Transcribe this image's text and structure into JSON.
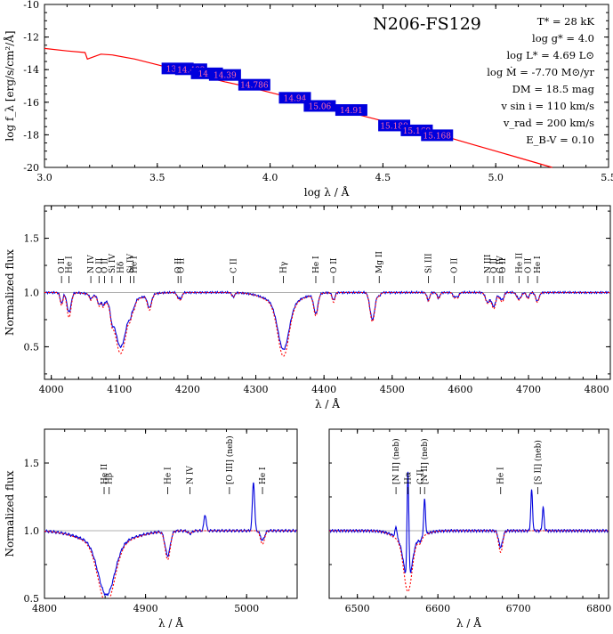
{
  "chart_data": [
    {
      "type": "scatter",
      "title": "N206-FS129",
      "xlabel": "log λ / Å",
      "ylabel": "log f_λ [erg/s/cm²/Å]",
      "xlim": [
        3.0,
        5.5
      ],
      "ylim": [
        -20,
        -10
      ],
      "xticks": [
        "3.0",
        "3.5",
        "4.0",
        "4.5",
        "5.0",
        "5.5"
      ],
      "yticks": [
        "-20",
        "-18",
        "-16",
        "-14",
        "-12",
        "-10"
      ],
      "model_sed": {
        "name": "model SED",
        "color": "#ff0000",
        "x": [
          3.0,
          3.1,
          3.18,
          3.19,
          3.25,
          3.3,
          3.4,
          3.5,
          3.6,
          3.7,
          3.8,
          3.9,
          4.0,
          4.1,
          4.2,
          4.3,
          4.4,
          4.5,
          4.6,
          4.7,
          4.8,
          4.9,
          5.0,
          5.1,
          5.25
        ],
        "y": [
          -12.7,
          -12.85,
          -12.95,
          -13.35,
          -13.05,
          -13.1,
          -13.35,
          -13.7,
          -14.05,
          -14.4,
          -14.75,
          -15.05,
          -15.4,
          -15.75,
          -16.1,
          -16.45,
          -16.8,
          -17.15,
          -17.5,
          -17.85,
          -18.2,
          -18.6,
          -19.0,
          -19.4,
          -20.0
        ]
      },
      "photometry": {
        "name": "photometry",
        "color": "#0000dd",
        "points": [
          {
            "label": "13.88",
            "x": 3.59,
            "y": -13.9
          },
          {
            "label": "14.482",
            "x": 3.65,
            "y": -13.95
          },
          {
            "label": "14.5",
            "x": 3.72,
            "y": -14.2
          },
          {
            "label": "14.39",
            "x": 3.8,
            "y": -14.3
          },
          {
            "label": "14.786",
            "x": 3.93,
            "y": -14.9
          },
          {
            "label": "14.94",
            "x": 4.11,
            "y": -15.7
          },
          {
            "label": "15.06",
            "x": 4.22,
            "y": -16.2
          },
          {
            "label": "14.91",
            "x": 4.36,
            "y": -16.45
          },
          {
            "label": "15.189",
            "x": 4.55,
            "y": -17.4
          },
          {
            "label": "15.169",
            "x": 4.65,
            "y": -17.7
          },
          {
            "label": "15.168",
            "x": 4.74,
            "y": -18.0
          }
        ]
      },
      "parameters": [
        "T* = 28 kK",
        "log g* = 4.0",
        "log L* = 4.69 L⊙",
        "log Ṁ = -7.70 M⊙/yr",
        "DM = 18.5 mag",
        "v sin i = 110 km/s",
        "v_rad = 200 km/s",
        "E_B-V = 0.10"
      ]
    },
    {
      "type": "line",
      "xlabel": "λ / Å",
      "ylabel": "Normalized flux",
      "xlim": [
        3990,
        4820
      ],
      "ylim": [
        0.2,
        1.8
      ],
      "xticks": [
        "4000",
        "4100",
        "4200",
        "4300",
        "4400",
        "4500",
        "4600",
        "4700",
        "4800"
      ],
      "yticks": [
        "0.5",
        "1.0",
        "1.5"
      ],
      "series": [
        {
          "name": "observation",
          "color": "#0000dd",
          "style": "solid"
        },
        {
          "name": "model",
          "color": "#ff0000",
          "style": "dotted"
        }
      ],
      "lines": [
        {
          "label": "O II",
          "x": 4015,
          "depth_obs": 0.1,
          "depth_mod": 0.12,
          "width": 2
        },
        {
          "label": "He I",
          "x": 4026,
          "depth_obs": 0.18,
          "depth_mod": 0.23,
          "width": 3
        },
        {
          "label": "N IV",
          "x": 4058,
          "depth_obs": 0.04,
          "depth_mod": 0.05,
          "width": 2
        },
        {
          "label": "O II",
          "x": 4070,
          "depth_obs": 0.07,
          "depth_mod": 0.08,
          "width": 2
        },
        {
          "label": "O II",
          "x": 4076,
          "depth_obs": 0.06,
          "depth_mod": 0.07,
          "width": 2
        },
        {
          "label": "Si IV",
          "x": 4089,
          "depth_obs": 0.1,
          "depth_mod": 0.1,
          "width": 2
        },
        {
          "label": "Hδ",
          "x": 4101.7,
          "depth_obs": 0.4,
          "depth_mod": 0.45,
          "width": 8
        },
        {
          "label": "Si IV",
          "x": 4116,
          "depth_obs": 0.08,
          "depth_mod": 0.08,
          "width": 2
        },
        {
          "label": "He I",
          "x": 4121,
          "depth_obs": 0.05,
          "depth_mod": 0.06,
          "width": 2
        },
        {
          "label": "He I",
          "x": 4144,
          "depth_obs": 0.12,
          "depth_mod": 0.14,
          "width": 3
        },
        {
          "label": "O II",
          "x": 4186,
          "depth_obs": 0.04,
          "depth_mod": 0.05,
          "width": 2
        },
        {
          "label": "O II",
          "x": 4190,
          "depth_obs": 0.05,
          "depth_mod": 0.06,
          "width": 2
        },
        {
          "label": "C II",
          "x": 4267,
          "depth_obs": 0.04,
          "depth_mod": 0.04,
          "width": 2
        },
        {
          "label": "Hγ",
          "x": 4340.5,
          "depth_obs": 0.42,
          "depth_mod": 0.47,
          "width": 8
        },
        {
          "label": "He I",
          "x": 4388,
          "depth_obs": 0.18,
          "depth_mod": 0.2,
          "width": 3
        },
        {
          "label": "O II",
          "x": 4414,
          "depth_obs": 0.07,
          "depth_mod": 0.09,
          "width": 2
        },
        {
          "label": "He I",
          "x": 4471,
          "depth_obs": 0.25,
          "depth_mod": 0.27,
          "width": 3.5
        },
        {
          "label": "Mg II",
          "x": 4481,
          "depth_obs": 0.03,
          "depth_mod": 0.03,
          "width": 2
        },
        {
          "label": "Si III",
          "x": 4553,
          "depth_obs": 0.07,
          "depth_mod": 0.08,
          "width": 2
        },
        {
          "label": "Si III",
          "x": 4568,
          "depth_obs": 0.05,
          "depth_mod": 0.06,
          "width": 2
        },
        {
          "label": "O II",
          "x": 4591,
          "depth_obs": 0.04,
          "depth_mod": 0.05,
          "width": 2
        },
        {
          "label": "O II",
          "x": 4596,
          "depth_obs": 0.04,
          "depth_mod": 0.05,
          "width": 2
        },
        {
          "label": "N III",
          "x": 4640,
          "depth_obs": 0.09,
          "depth_mod": 0.1,
          "width": 3
        },
        {
          "label": "O II",
          "x": 4649,
          "depth_obs": 0.13,
          "depth_mod": 0.15,
          "width": 3
        },
        {
          "label": "C IV",
          "x": 4658,
          "depth_obs": 0.04,
          "depth_mod": 0.05,
          "width": 2
        },
        {
          "label": "O II",
          "x": 4662,
          "depth_obs": 0.06,
          "depth_mod": 0.08,
          "width": 2
        },
        {
          "label": "He II",
          "x": 4686,
          "depth_obs": 0.06,
          "depth_mod": 0.07,
          "width": 3
        },
        {
          "label": "O II",
          "x": 4699,
          "depth_obs": 0.05,
          "depth_mod": 0.06,
          "width": 2
        },
        {
          "label": "He I",
          "x": 4713,
          "depth_obs": 0.08,
          "depth_mod": 0.09,
          "width": 2.5
        }
      ],
      "labels": [
        {
          "text": "O II",
          "x": 4015
        },
        {
          "text": "He I",
          "x": 4026
        },
        {
          "text": "N IV",
          "x": 4058
        },
        {
          "text": "O II",
          "x": 4070
        },
        {
          "text": "O II",
          "x": 4078
        },
        {
          "text": "Si IV",
          "x": 4089
        },
        {
          "text": "Hδ",
          "x": 4101.7
        },
        {
          "text": "Si IV",
          "x": 4116
        },
        {
          "text": "He I",
          "x": 4121
        },
        {
          "text": "O II",
          "x": 4186
        },
        {
          "text": "O II",
          "x": 4190
        },
        {
          "text": "C II",
          "x": 4267
        },
        {
          "text": "Hγ",
          "x": 4340.5
        },
        {
          "text": "He I",
          "x": 4388
        },
        {
          "text": "O II",
          "x": 4414
        },
        {
          "text": "Mg II",
          "x": 4481
        },
        {
          "text": "Si III",
          "x": 4553
        },
        {
          "text": "O II",
          "x": 4591
        },
        {
          "text": "N III",
          "x": 4640
        },
        {
          "text": "O II",
          "x": 4649
        },
        {
          "text": "C IV",
          "x": 4658
        },
        {
          "text": "O II",
          "x": 4662
        },
        {
          "text": "He II",
          "x": 4686
        },
        {
          "text": "O II",
          "x": 4699
        },
        {
          "text": "He I",
          "x": 4713
        }
      ]
    },
    {
      "type": "line",
      "xlabel": "λ / Å",
      "ylabel": "Normalized flux",
      "xlim": [
        4800,
        5050
      ],
      "ylim": [
        0.5,
        1.75
      ],
      "xticks": [
        "4800",
        "4900",
        "5000"
      ],
      "yticks": [
        "0.5",
        "1.0",
        "1.5"
      ],
      "series": [
        {
          "name": "observation",
          "color": "#0000dd",
          "style": "solid"
        },
        {
          "name": "model",
          "color": "#ff0000",
          "style": "dotted"
        }
      ],
      "lines": [
        {
          "label": "Hβ",
          "x": 4861.3,
          "depth_obs": 0.38,
          "depth_mod": 0.43,
          "width": 8
        },
        {
          "label": "He I",
          "x": 4921.9,
          "depth_obs": 0.18,
          "depth_mod": 0.21,
          "width": 2.5
        },
        {
          "label": "N IV",
          "x": 4944,
          "depth_obs": 0.02,
          "depth_mod": 0.02,
          "width": 2
        },
        {
          "label": "He I",
          "x": 5015.7,
          "depth_obs": 0.07,
          "depth_mod": 0.1,
          "width": 2
        }
      ],
      "emission": [
        {
          "label": "[O III] (neb)",
          "x": 4958.9,
          "height": 0.12
        },
        {
          "label": "[O III] (neb)",
          "x": 5006.8,
          "height": 0.36
        }
      ],
      "labels": [
        {
          "text": "He II",
          "x": 4859
        },
        {
          "text": "Hβ",
          "x": 4864
        },
        {
          "text": "He I",
          "x": 4921.9
        },
        {
          "text": "N IV",
          "x": 4944
        },
        {
          "text": "[O III] (neb)",
          "x": 4983
        },
        {
          "text": "He I",
          "x": 5015.7
        }
      ]
    },
    {
      "type": "line",
      "xlabel": "λ / Å",
      "ylabel": "",
      "xlim": [
        6465,
        6812
      ],
      "ylim": [
        0.5,
        1.75
      ],
      "xticks": [
        "6500",
        "6600",
        "6700",
        "6800"
      ],
      "yticks": [],
      "series": [
        {
          "name": "observation",
          "color": "#0000dd",
          "style": "solid"
        },
        {
          "name": "model",
          "color": "#ff0000",
          "style": "dotted"
        }
      ],
      "lines": [
        {
          "label": "Hα",
          "x": 6562.8,
          "depth_obs": 0.3,
          "depth_mod": 0.36,
          "width": 5
        },
        {
          "label": "C II",
          "x": 6578,
          "depth_obs": 0.03,
          "depth_mod": 0.04,
          "width": 2
        },
        {
          "label": "He I",
          "x": 6678,
          "depth_obs": 0.12,
          "depth_mod": 0.16,
          "width": 2.5
        }
      ],
      "emission": [
        {
          "label": "[N II] (neb)",
          "x": 6548,
          "height": 0.08
        },
        {
          "label": "Hα",
          "x": 6562.8,
          "height": 0.82
        },
        {
          "label": "[N II] (neb)",
          "x": 6583.5,
          "height": 0.26
        },
        {
          "label": "[S II] (neb)",
          "x": 6716.5,
          "height": 0.3
        },
        {
          "label": "[S II] (neb)",
          "x": 6730.8,
          "height": 0.17
        }
      ],
      "labels": [
        {
          "text": "[N II] (neb)",
          "x": 6548
        },
        {
          "text": "Hα",
          "x": 6562.8
        },
        {
          "text": "C II",
          "x": 6578
        },
        {
          "text": "[N II] (neb)",
          "x": 6583.5
        },
        {
          "text": "He I",
          "x": 6678
        },
        {
          "text": "[S II] (neb)",
          "x": 6724
        }
      ]
    }
  ]
}
